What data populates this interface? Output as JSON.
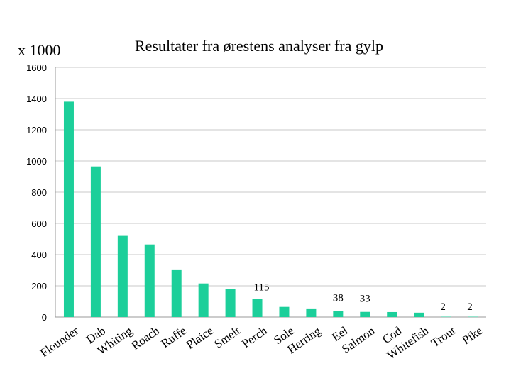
{
  "chart_data": {
    "type": "bar",
    "title": "Resultater fra ørestens analyser fra gylp",
    "unit_label": "x 1000",
    "xlabel": "",
    "ylabel": "",
    "ylim": [
      0,
      1600
    ],
    "yticks": [
      "0",
      "200",
      "400",
      "600",
      "800",
      "1000",
      "1200",
      "1400",
      "1600"
    ],
    "bar_color": "#1ccf9a",
    "categories": [
      "Flounder",
      "Dab",
      "Whiting",
      "Roach",
      "Ruffe",
      "Plaice",
      "Smelt",
      "Perch",
      "Sole",
      "Herring",
      "Eel",
      "Salmon",
      "Cod",
      "Whitefish",
      "Trout",
      "Pike"
    ],
    "values": [
      1380,
      965,
      520,
      465,
      305,
      215,
      180,
      115,
      65,
      55,
      38,
      33,
      32,
      28,
      2,
      2
    ],
    "data_labels": [
      "",
      "",
      "",
      "",
      "",
      "",
      "",
      "115",
      "",
      "",
      "38",
      "33",
      "",
      "",
      "2",
      "2"
    ]
  }
}
